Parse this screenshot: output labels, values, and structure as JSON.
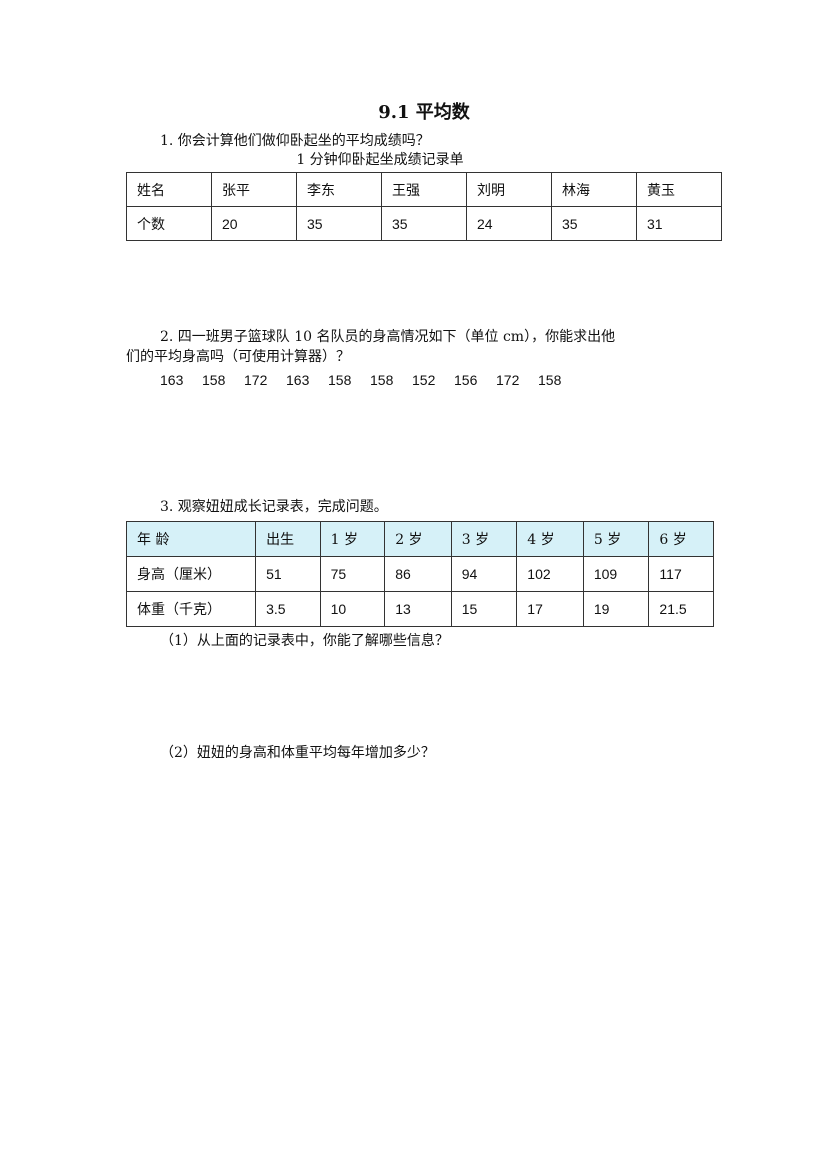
{
  "title": "9.1 平均数",
  "q1": {
    "text": "1.  你会计算他们做仰卧起坐的平均成绩吗？",
    "table_title": "1 分钟仰卧起坐成绩记录单",
    "rows": [
      [
        "姓名",
        "张平",
        "李东",
        "王强",
        "刘明",
        "林海",
        "黄玉"
      ],
      [
        "个数",
        "20",
        "35",
        "35",
        "24",
        "35",
        "31"
      ]
    ]
  },
  "q2": {
    "line1": "2.  四一班男子篮球队 10 名队员的身高情况如下（单位 cm），你能求出他",
    "line2": "们的平均身高吗（可使用计算器）？",
    "heights": [
      "163",
      "158",
      "172",
      "163",
      "158",
      "158",
      "152",
      "156",
      "172",
      "158"
    ]
  },
  "q3": {
    "text": "3.  观察妞妞成长记录表，完成问题。",
    "header_color": "#d6f1f8",
    "rows": [
      [
        "年  龄",
        "出生",
        "1 岁",
        "2 岁",
        "3 岁",
        "4 岁",
        "5 岁",
        "6 岁"
      ],
      [
        "身高（厘米）",
        "51",
        "75",
        "86",
        "94",
        "102",
        "109",
        "117"
      ],
      [
        "体重（千克）",
        "3.5",
        "10",
        "13",
        "15",
        "17",
        "19",
        "21.5"
      ]
    ],
    "sub1": "（1）从上面的记录表中，你能了解哪些信息？",
    "sub2": "（2）妞妞的身高和体重平均每年增加多少？"
  }
}
